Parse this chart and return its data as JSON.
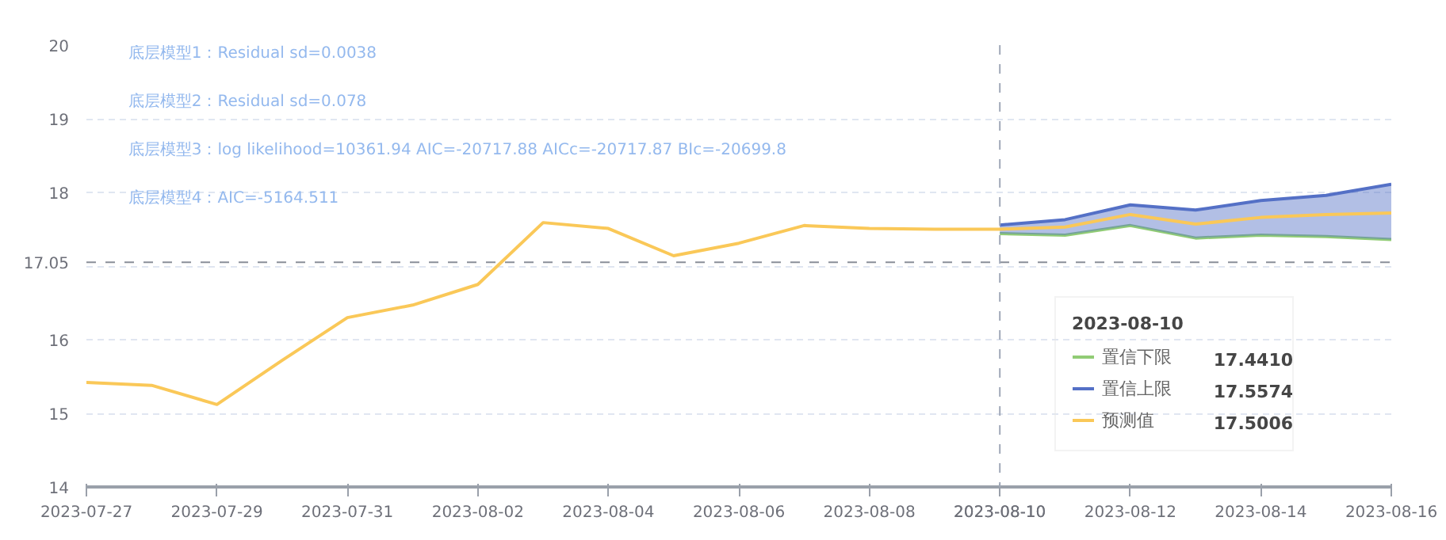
{
  "chart_data": {
    "type": "line",
    "x": [
      "2023-07-27",
      "2023-07-28",
      "2023-07-29",
      "2023-07-30",
      "2023-07-31",
      "2023-08-01",
      "2023-08-02",
      "2023-08-03",
      "2023-08-04",
      "2023-08-05",
      "2023-08-06",
      "2023-08-07",
      "2023-08-08",
      "2023-08-09",
      "2023-08-10",
      "2023-08-11",
      "2023-08-12",
      "2023-08-13",
      "2023-08-14",
      "2023-08-15",
      "2023-08-16"
    ],
    "series": [
      {
        "name": "置信下限",
        "color": "#91cc75",
        "values": [
          null,
          null,
          null,
          null,
          null,
          null,
          null,
          null,
          null,
          null,
          null,
          null,
          null,
          null,
          17.441,
          17.42,
          17.55,
          17.38,
          17.42,
          17.4,
          17.36
        ]
      },
      {
        "name": "置信上限",
        "color": "#5470c6",
        "values": [
          null,
          null,
          null,
          null,
          null,
          null,
          null,
          null,
          null,
          null,
          null,
          null,
          null,
          null,
          17.5574,
          17.63,
          17.83,
          17.76,
          17.89,
          17.96,
          18.11
        ],
        "lower": [
          null,
          null,
          null,
          null,
          null,
          null,
          null,
          null,
          null,
          null,
          null,
          null,
          null,
          null,
          17.441,
          17.42,
          17.55,
          17.38,
          17.42,
          17.4,
          17.36
        ],
        "upper": [
          null,
          null,
          null,
          null,
          null,
          null,
          null,
          null,
          null,
          null,
          null,
          null,
          null,
          null,
          17.5574,
          17.63,
          17.83,
          17.76,
          17.89,
          17.96,
          18.11
        ]
      },
      {
        "name": "预测值",
        "color": "#fac858",
        "values": [
          15.42,
          15.38,
          15.12,
          15.72,
          16.3,
          16.47,
          16.75,
          17.59,
          17.51,
          17.14,
          17.31,
          17.55,
          17.51,
          17.5,
          17.5006,
          17.53,
          17.7,
          17.57,
          17.66,
          17.7,
          17.72
        ]
      }
    ],
    "xlim": [
      "2023-07-27",
      "2023-08-16"
    ],
    "xticks": [
      "2023-07-27",
      "2023-07-29",
      "2023-07-31",
      "2023-08-02",
      "2023-08-04",
      "2023-08-06",
      "2023-08-08",
      {
        "value": "2023-08-10",
        "label": null
      },
      "2023-08-12",
      "2023-08-14",
      "2023-08-16"
    ],
    "ylim": [
      14,
      20
    ],
    "yticks": [
      14,
      15,
      16,
      {
        "value": 17,
        "label": null
      },
      18,
      19,
      20
    ],
    "grid": "y",
    "line_style": "solid",
    "legend": "bottom right",
    "legend_title": "2023-08-10",
    "ref_lines": [
      {
        "axis": "y",
        "value": 17.05,
        "label": "17.05",
        "line_style": "dashed"
      },
      {
        "axis": "x",
        "value": "2023-08-10",
        "label": "2023-08-10",
        "line_style": "dashed"
      }
    ],
    "annotations": [
      "底层模型1：Residual sd=0.0038",
      "底层模型2：Residual sd=0.078",
      "底层模型3：log likelihood=10361.94 AIC=-20717.88 AICc=-20717.87 BIc=-20699.8",
      "底层模型4：AIC=-5164.511",
      "17.4410",
      "17.5574",
      "17.5006"
    ]
  }
}
